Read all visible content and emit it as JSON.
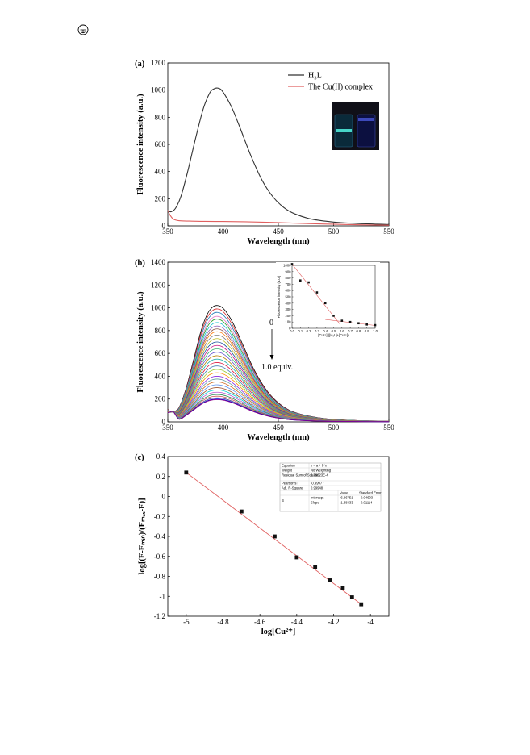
{
  "figure": {
    "panels": [
      {
        "label": "(a)"
      },
      {
        "label": "(b)",
        "arrow_top": "0",
        "arrow_bottom": "1.0 equiv."
      },
      {
        "label": "(c)"
      }
    ]
  },
  "fit_table": {
    "rows": [
      [
        "Equation",
        "y = a + b*x"
      ],
      [
        "Weight",
        "No Weighting"
      ],
      [
        "Residual Sum of Squares",
        "6.79023E-4"
      ],
      [
        "Pearson's r",
        "-0.99977"
      ],
      [
        "Adj. R-Square",
        "0.99948"
      ]
    ],
    "col_value": "Value",
    "col_error": "Standard Error",
    "param_name": "B",
    "params": [
      [
        "Intercept",
        "-6.86751",
        "0.04603"
      ],
      [
        "Slope",
        "-1.38433",
        "0.01114"
      ]
    ]
  },
  "chart_data": [
    {
      "type": "line",
      "panel": "(a)",
      "xlabel": "Wavelength (nm)",
      "ylabel": "Fluorescence intensity (a.u.)",
      "xlim": [
        350,
        550
      ],
      "ylim": [
        0,
        1200
      ],
      "xticks": [
        350,
        400,
        450,
        500,
        550
      ],
      "yticks": [
        0,
        200,
        400,
        600,
        800,
        1000,
        1200
      ],
      "legend": "top-right",
      "series": [
        {
          "name": "H₃L",
          "color": "#333333",
          "x": [
            350,
            353,
            357,
            362,
            368,
            375,
            382,
            388,
            392,
            395,
            398,
            402,
            408,
            415,
            425,
            435,
            445,
            455,
            465,
            480,
            500,
            520,
            540,
            550
          ],
          "y": [
            110,
            104,
            130,
            220,
            400,
            640,
            860,
            980,
            1010,
            1015,
            1005,
            960,
            870,
            730,
            520,
            340,
            215,
            135,
            88,
            50,
            28,
            18,
            12,
            10
          ]
        },
        {
          "name": "The Cu(II) complex",
          "color": "#e06060",
          "x": [
            350,
            352,
            355,
            360,
            370,
            380,
            400,
            420,
            450,
            480,
            510,
            530,
            550
          ],
          "y": [
            115,
            80,
            50,
            38,
            35,
            33,
            32,
            30,
            24,
            16,
            10,
            7,
            5
          ]
        }
      ]
    },
    {
      "type": "line",
      "panel": "(b)",
      "xlabel": "Wavelength (nm)",
      "ylabel": "Fluorescence intensity (a.u.)",
      "xlim": [
        350,
        550
      ],
      "ylim": [
        0,
        1400
      ],
      "xticks": [
        350,
        400,
        450,
        500,
        550
      ],
      "yticks": [
        0,
        200,
        400,
        600,
        800,
        1000,
        1200,
        1400
      ],
      "titration": {
        "peak_nm": 395,
        "peak_values": [
          1020,
          990,
          960,
          925,
          900,
          870,
          840,
          815,
          790,
          760,
          730,
          700,
          670,
          640,
          610,
          580,
          550,
          520,
          490,
          460,
          430,
          400,
          375,
          350,
          325,
          300,
          280,
          260,
          240,
          225,
          210,
          200,
          195
        ],
        "colors": [
          "#000000",
          "#d62728",
          "#1f77b4",
          "#e377c2",
          "#2ca02c",
          "#17becf",
          "#9467bd",
          "#8c564b",
          "#ff7f0e",
          "#7f7f7f",
          "#bcbd22",
          "#1a55a0",
          "#c71585",
          "#3cb371",
          "#6a5acd",
          "#b8860b",
          "#20b2aa",
          "#dc143c",
          "#4682b4",
          "#9acd32",
          "#ff8c00",
          "#8a2be2",
          "#5f9ea0",
          "#d2691e",
          "#6495ed",
          "#a0522d",
          "#00ced1",
          "#ba55d3",
          "#2e8b57",
          "#cd5c5c",
          "#483d8b",
          "#0000cd",
          "#8b008b"
        ]
      },
      "inset": {
        "xlabel": "[Cu²⁺]/([H₃L]+[Cu²⁺])",
        "ylabel": "Fluorescence intensity (a.u.)",
        "xlim": [
          0,
          1.0
        ],
        "ylim": [
          0,
          1000
        ],
        "xticks": [
          0.0,
          0.1,
          0.2,
          0.3,
          0.4,
          0.5,
          0.6,
          0.7,
          0.8,
          0.9,
          1.0
        ],
        "yticks": [
          0,
          100,
          200,
          300,
          400,
          500,
          600,
          700,
          800,
          900,
          1000
        ],
        "x": [
          0.0,
          0.1,
          0.2,
          0.3,
          0.4,
          0.5,
          0.6,
          0.7,
          0.8,
          0.9,
          1.0
        ],
        "y": [
          1020,
          760,
          730,
          570,
          400,
          200,
          120,
          100,
          80,
          60,
          50
        ]
      }
    },
    {
      "type": "scatter",
      "panel": "(c)",
      "xlabel": "log[Cu²⁺]",
      "ylabel": "log[(F-Fₘᵢₙ)/(Fₘₐₓ-F)]",
      "xlim": [
        -5.1,
        -3.9
      ],
      "ylim": [
        -1.2,
        0.4
      ],
      "xticks": [
        -5.0,
        -4.8,
        -4.6,
        -4.4,
        -4.2,
        -4.0
      ],
      "yticks": [
        -1.2,
        -1.0,
        -0.8,
        -0.6,
        -0.4,
        -0.2,
        0.0,
        0.2,
        0.4
      ],
      "x": [
        -5.0,
        -4.7,
        -4.52,
        -4.4,
        -4.3,
        -4.22,
        -4.15,
        -4.1,
        -4.05
      ],
      "y": [
        0.24,
        -0.15,
        -0.4,
        -0.61,
        -0.71,
        -0.84,
        -0.92,
        -1.01,
        -1.08
      ],
      "fit": {
        "intercept": -6.86751,
        "slope": -1.38433,
        "color": "#e06060"
      }
    }
  ],
  "colors": {
    "line_dark": "#333333",
    "line_red": "#e06060",
    "points": "#111111"
  },
  "icons": {
    "corner": "page-marker-icon"
  }
}
